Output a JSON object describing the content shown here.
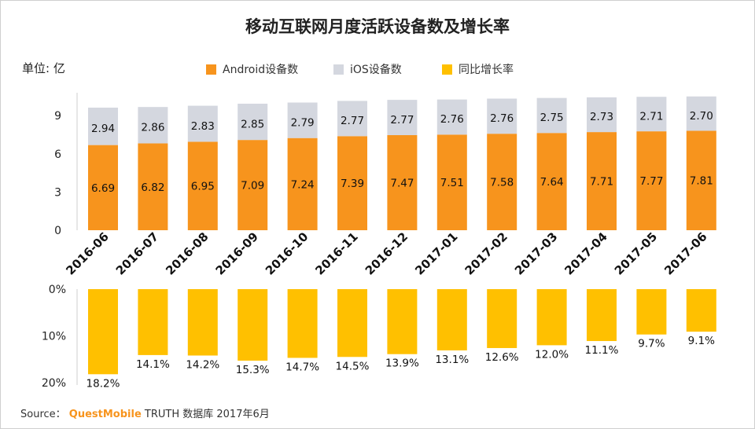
{
  "title": "移动互联网月度活跃设备数及增长率",
  "unit": "单位: 亿",
  "legend": [
    {
      "label": "Android设备数",
      "color": "#f7941d"
    },
    {
      "label": "iOS设备数",
      "color": "#d4d7df"
    },
    {
      "label": "同比增长率",
      "color": "#ffc000"
    }
  ],
  "source": {
    "prefix": "Source：",
    "brand": "QuestMobile",
    "suffix": "TRUTH 数据库 2017年6月"
  },
  "chart_data": [
    {
      "type": "bar",
      "stacked": true,
      "categories": [
        "2016-06",
        "2016-07",
        "2016-08",
        "2016-09",
        "2016-10",
        "2016-11",
        "2016-12",
        "2017-01",
        "2017-02",
        "2017-03",
        "2017-04",
        "2017-05",
        "2017-06"
      ],
      "series": [
        {
          "name": "Android设备数",
          "values": [
            6.69,
            6.82,
            6.95,
            7.09,
            7.24,
            7.39,
            7.47,
            7.51,
            7.58,
            7.64,
            7.71,
            7.77,
            7.81
          ]
        },
        {
          "name": "iOS设备数",
          "values": [
            2.94,
            2.86,
            2.83,
            2.85,
            2.79,
            2.77,
            2.77,
            2.76,
            2.76,
            2.75,
            2.73,
            2.71,
            2.7
          ]
        }
      ],
      "ylabel": "单位: 亿",
      "yticks": [
        0,
        3,
        6,
        9
      ],
      "ylim": [
        0,
        11
      ]
    },
    {
      "type": "bar",
      "orientation": "downward",
      "categories": [
        "2016-06",
        "2016-07",
        "2016-08",
        "2016-09",
        "2016-10",
        "2016-11",
        "2016-12",
        "2017-01",
        "2017-02",
        "2017-03",
        "2017-04",
        "2017-05",
        "2017-06"
      ],
      "series": [
        {
          "name": "同比增长率",
          "values": [
            18.2,
            14.1,
            14.2,
            15.3,
            14.7,
            14.5,
            13.9,
            13.1,
            12.6,
            12.0,
            11.1,
            9.7,
            9.1
          ]
        }
      ],
      "labels": [
        "18.2%",
        "14.1%",
        "14.2%",
        "15.3%",
        "14.7%",
        "14.5%",
        "13.9%",
        "13.1%",
        "12.6%",
        "12.0%",
        "11.1%",
        "9.7%",
        "9.1%"
      ],
      "yticks": [
        "0%",
        "10%",
        "20%"
      ],
      "ylim": [
        0,
        20
      ]
    }
  ]
}
